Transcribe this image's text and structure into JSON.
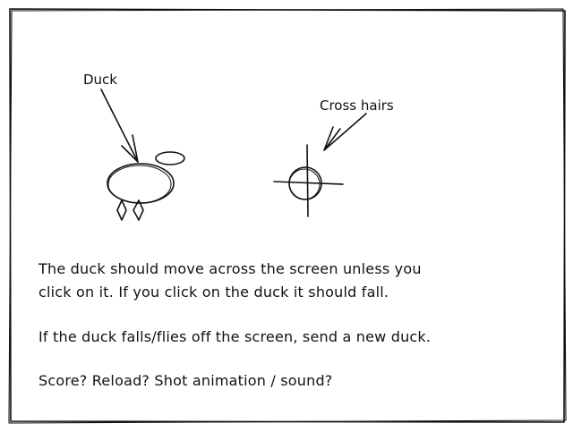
{
  "labels": {
    "duck": "Duck",
    "crosshairs": "Cross hairs"
  },
  "notes": {
    "line1": "The duck should move across the screen unless you",
    "line2": "click on it. If you click on the duck it should fall.",
    "line3": "If the duck falls/flies off the screen, send a new duck.",
    "line4": "Score? Reload? Shot animation / sound?"
  },
  "colors": {
    "ink": "#111111",
    "paper": "#ffffff"
  }
}
